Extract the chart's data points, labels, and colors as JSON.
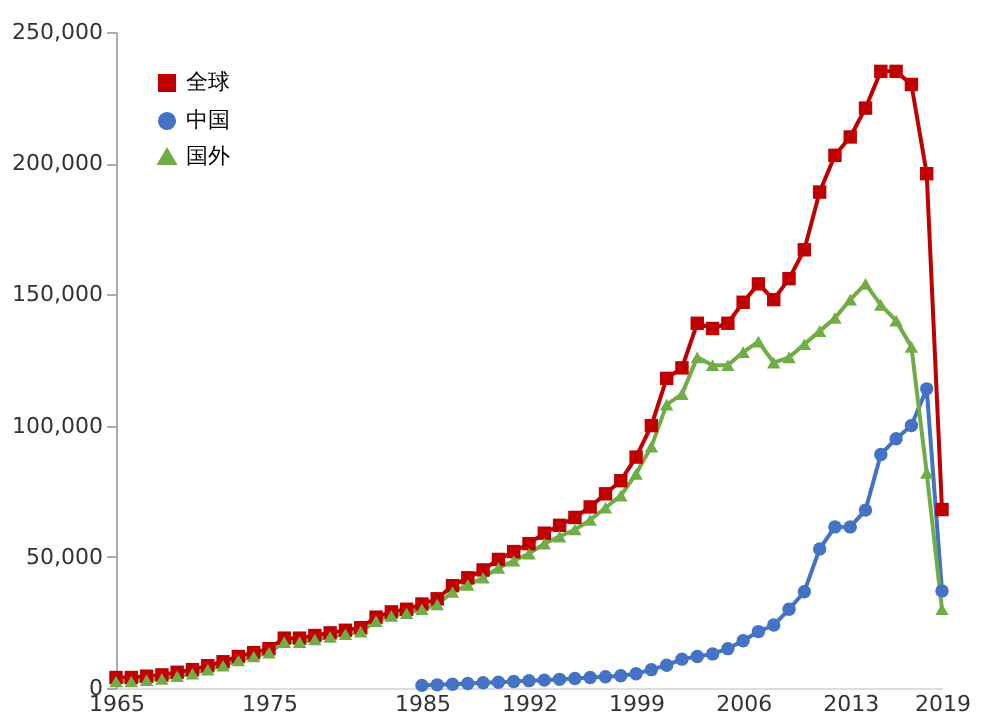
{
  "chart_data": {
    "type": "line",
    "x": [
      1965,
      1966,
      1967,
      1968,
      1969,
      1970,
      1971,
      1972,
      1973,
      1974,
      1975,
      1976,
      1977,
      1978,
      1979,
      1980,
      1981,
      1982,
      1983,
      1984,
      1985,
      1986,
      1987,
      1988,
      1989,
      1990,
      1991,
      1992,
      1993,
      1994,
      1995,
      1996,
      1997,
      1998,
      1999,
      2000,
      2001,
      2002,
      2003,
      2004,
      2005,
      2006,
      2007,
      2008,
      2009,
      2010,
      2011,
      2012,
      2013,
      2014,
      2015,
      2016,
      2017,
      2018,
      2019
    ],
    "series": [
      {
        "name": "全球",
        "color": "#c00000",
        "marker": "square",
        "values": [
          4000,
          4000,
          4500,
          5000,
          6000,
          7000,
          8500,
          10000,
          12000,
          13500,
          15000,
          19000,
          19000,
          20000,
          21000,
          22000,
          23000,
          27000,
          29000,
          30000,
          32000,
          34000,
          39000,
          42000,
          45000,
          49000,
          52000,
          55000,
          59000,
          62000,
          65000,
          69000,
          74000,
          79000,
          88000,
          100000,
          118000,
          122000,
          139000,
          137000,
          139000,
          147000,
          154000,
          148000,
          156000,
          167000,
          189000,
          203000,
          210000,
          221000,
          235000,
          235000,
          230000,
          196000,
          68000
        ]
      },
      {
        "name": "中国",
        "color": "#4472c4",
        "marker": "circle",
        "values": [
          null,
          null,
          null,
          null,
          null,
          null,
          null,
          null,
          null,
          null,
          null,
          null,
          null,
          null,
          null,
          null,
          null,
          null,
          null,
          null,
          1000,
          1200,
          1400,
          1700,
          2000,
          2200,
          2500,
          2800,
          3000,
          3300,
          3600,
          4000,
          4300,
          4700,
          5400,
          7000,
          8700,
          11000,
          12000,
          13000,
          15000,
          18000,
          21500,
          24000,
          30000,
          36700,
          53000,
          61400,
          61400,
          67800,
          89000,
          95000,
          100000,
          114000,
          37000
        ]
      },
      {
        "name": "国外",
        "color": "#70ad47",
        "marker": "triangle",
        "values": [
          2500,
          2500,
          3000,
          3500,
          4500,
          5500,
          7000,
          8500,
          10500,
          12000,
          13500,
          17500,
          17500,
          18500,
          19500,
          20500,
          21500,
          25500,
          27500,
          28500,
          30000,
          31800,
          36600,
          39300,
          42000,
          45800,
          48500,
          51200,
          55000,
          57700,
          60400,
          64000,
          68700,
          73300,
          81600,
          92000,
          108000,
          112000,
          126000,
          123000,
          123000,
          128000,
          132000,
          124000,
          126000,
          131000,
          136000,
          141000,
          148000,
          154000,
          146000,
          140000,
          130000,
          82000,
          30000
        ]
      }
    ],
    "xlim": [
      1965,
      2019
    ],
    "xticks": [
      1965,
      1975,
      1985,
      1992,
      1999,
      2006,
      2013,
      2019
    ],
    "ylim": [
      0,
      250000
    ],
    "yticks": [
      {
        "value": 0,
        "label": "0"
      },
      {
        "value": 50000,
        "label": "50,000"
      },
      {
        "value": 100000,
        "label": "100,000"
      },
      {
        "value": 150000,
        "label": "150,000"
      },
      {
        "value": 200000,
        "label": "200,000"
      },
      {
        "value": 250000,
        "label": "250,000"
      }
    ],
    "grid": false,
    "legend": "top left",
    "line_style": "solid"
  }
}
